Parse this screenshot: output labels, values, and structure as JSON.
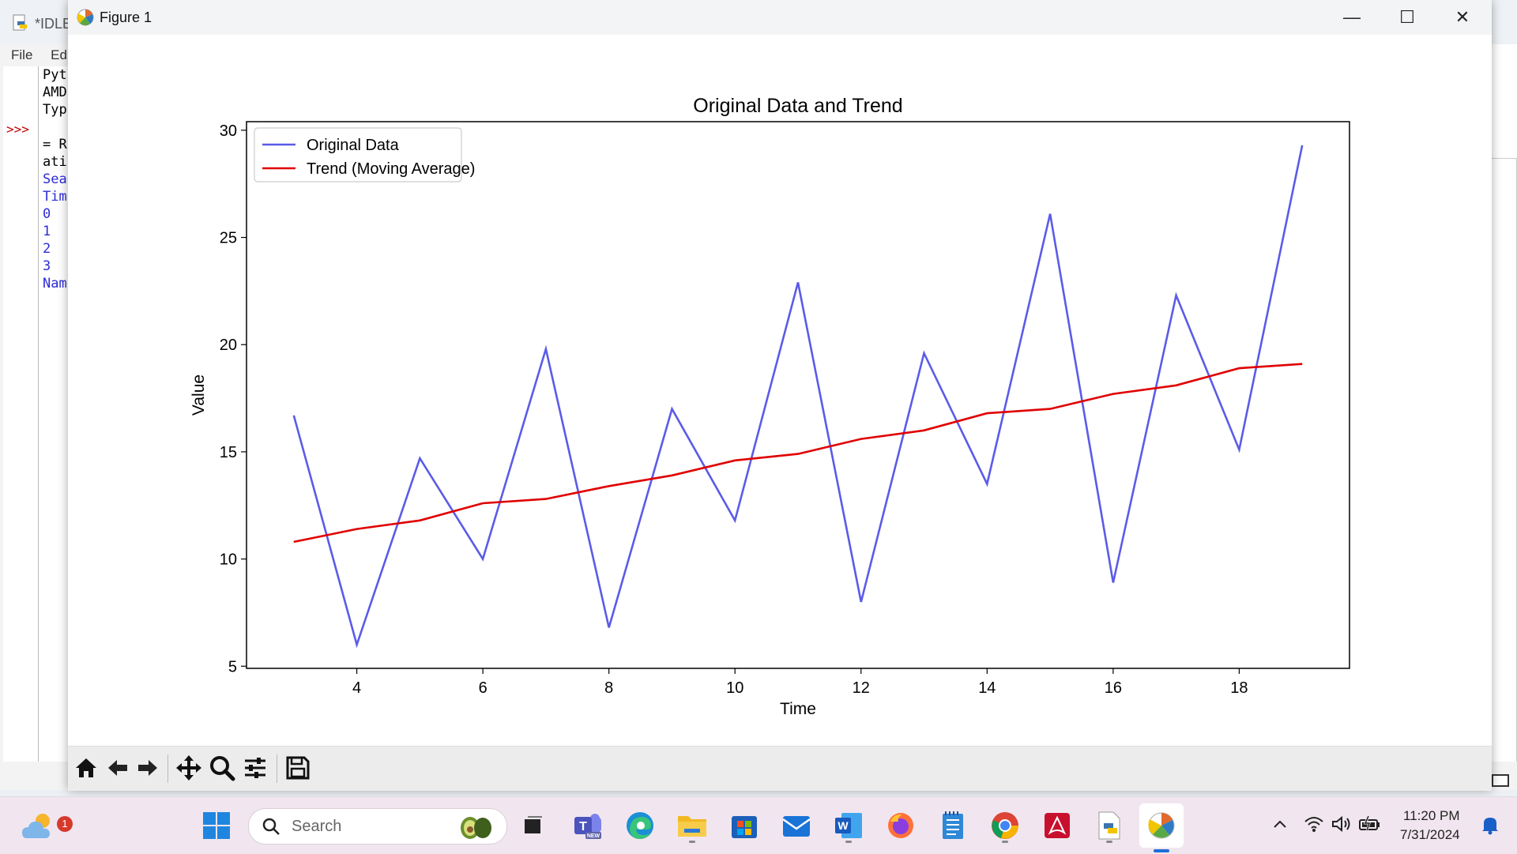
{
  "idle_window": {
    "title": "*IDLE",
    "menu": [
      "File",
      "Edi"
    ],
    "prompt": ">>>",
    "lines": [
      {
        "text": "Pyt",
        "style": "black"
      },
      {
        "text": "AMD",
        "style": "black"
      },
      {
        "text": "Typ",
        "style": "black"
      },
      {
        "text": "",
        "style": "black"
      },
      {
        "text": "= R",
        "style": "black"
      },
      {
        "text": "ati",
        "style": "black"
      },
      {
        "text": "Sea",
        "style": "blue"
      },
      {
        "text": "Tim",
        "style": "blue"
      },
      {
        "text": "0",
        "style": "blue"
      },
      {
        "text": "1",
        "style": "blue"
      },
      {
        "text": "2",
        "style": "blue"
      },
      {
        "text": "3",
        "style": "blue"
      },
      {
        "text": "Nam",
        "style": "blue"
      }
    ]
  },
  "figure_window": {
    "title": "Figure 1",
    "controls": {
      "minimize": "—",
      "maximize": "☐",
      "close": "✕"
    }
  },
  "toolbar": {
    "tools": [
      {
        "name": "home-icon",
        "glyph": "home"
      },
      {
        "name": "back-icon",
        "glyph": "back"
      },
      {
        "name": "forward-icon",
        "glyph": "forward"
      },
      {
        "name": "pan-icon",
        "glyph": "pan"
      },
      {
        "name": "zoom-icon",
        "glyph": "zoom"
      },
      {
        "name": "configure-subplots-icon",
        "glyph": "sliders"
      },
      {
        "name": "save-icon",
        "glyph": "save"
      }
    ]
  },
  "chart_data": {
    "type": "line",
    "title": "Original Data and Trend",
    "xlabel": "Time",
    "ylabel": "Value",
    "xlim": [
      2.25,
      19.75
    ],
    "ylim": [
      4.9,
      30.4
    ],
    "xticks": [
      4,
      6,
      8,
      10,
      12,
      14,
      16,
      18
    ],
    "yticks": [
      5,
      10,
      15,
      20,
      25,
      30
    ],
    "legend_position": "top-left",
    "grid": false,
    "series": [
      {
        "name": "Original Data",
        "color": "#5b5be8",
        "x": [
          3,
          4,
          5,
          6,
          7,
          8,
          9,
          10,
          11,
          12,
          13,
          14,
          15,
          16,
          17,
          18,
          19
        ],
        "y": [
          16.7,
          6.0,
          14.7,
          10.0,
          19.8,
          6.8,
          17.0,
          11.8,
          22.9,
          8.0,
          19.6,
          13.5,
          26.1,
          8.9,
          22.3,
          15.1,
          29.3
        ]
      },
      {
        "name": "Trend (Moving Average)",
        "color": "#e00000",
        "x": [
          3,
          4,
          5,
          6,
          7,
          8,
          9,
          10,
          11,
          12,
          13,
          14,
          15,
          16,
          17,
          18,
          19
        ],
        "y": [
          10.8,
          11.4,
          11.8,
          12.6,
          12.8,
          13.4,
          13.9,
          14.6,
          14.9,
          15.6,
          16.0,
          16.8,
          17.0,
          17.7,
          18.1,
          18.9,
          19.1
        ]
      }
    ]
  },
  "taskbar": {
    "weather_badge": "1",
    "search_placeholder": "Search",
    "apps": [
      {
        "name": "start-button",
        "icon": "windows-logo-icon"
      },
      {
        "name": "task-view-button",
        "icon": "task-view-icon"
      },
      {
        "name": "teams-button",
        "icon": "teams-icon",
        "badge": "NEW"
      },
      {
        "name": "edge-button",
        "icon": "edge-icon"
      },
      {
        "name": "file-explorer-button",
        "icon": "folder-icon"
      },
      {
        "name": "store-button",
        "icon": "store-icon"
      },
      {
        "name": "mail-button",
        "icon": "mail-icon"
      },
      {
        "name": "word-button",
        "icon": "word-icon",
        "letter": "W"
      },
      {
        "name": "firefox-button",
        "icon": "firefox-icon"
      },
      {
        "name": "notepad-button",
        "icon": "notepad-icon"
      },
      {
        "name": "chrome-button",
        "icon": "chrome-icon"
      },
      {
        "name": "acrobat-button",
        "icon": "acrobat-icon"
      },
      {
        "name": "idle-button",
        "icon": "python-file-icon"
      },
      {
        "name": "matplotlib-button",
        "icon": "matplotlib-icon"
      }
    ],
    "clock_time": "11:20 PM",
    "clock_date": "7/31/2024"
  }
}
